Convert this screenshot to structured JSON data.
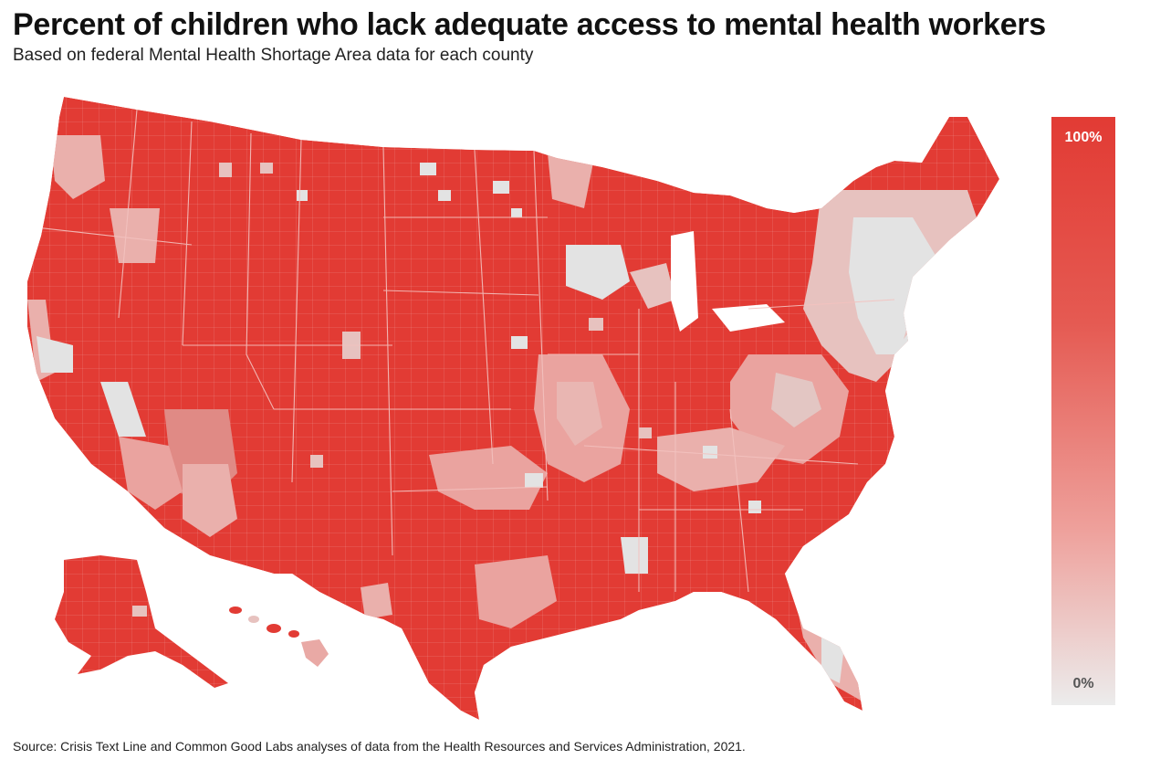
{
  "header": {
    "title": "Percent of children who lack adequate access to mental health workers",
    "subtitle": "Based on federal Mental Health Shortage Area data for each county"
  },
  "legend": {
    "max_label": "100%",
    "min_label": "0%",
    "color_high": "#e23b34",
    "color_low": "#ececec"
  },
  "map": {
    "base_color": "#e23b34",
    "light_color": "#e2e2e2",
    "mid_color": "#eaa39f",
    "border_color": "#f4c9c6",
    "regions": [
      "contiguous-us",
      "alaska",
      "hawaii"
    ]
  },
  "footer": {
    "source": "Source: Crisis Text Line and Common Good Labs analyses of data from the Health Resources and Services Administration, 2021."
  }
}
